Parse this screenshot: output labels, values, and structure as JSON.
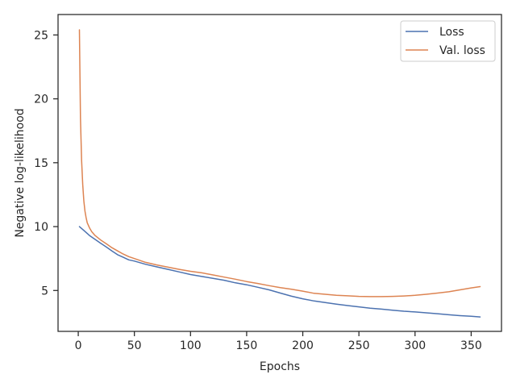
{
  "chart_data": {
    "type": "line",
    "xlabel": "Epochs",
    "ylabel": "Negative log-likelihood",
    "xlim": [
      -18,
      377
    ],
    "ylim": [
      1.8,
      26.6
    ],
    "xticks": [
      0,
      50,
      100,
      150,
      200,
      250,
      300,
      350
    ],
    "yticks": [
      5,
      10,
      15,
      20,
      25
    ],
    "grid": false,
    "legend_position": "top-right",
    "series": [
      {
        "name": "Loss",
        "color": "#4c72b0",
        "x": [
          1,
          5,
          10,
          15,
          20,
          25,
          30,
          35,
          40,
          45,
          50,
          60,
          70,
          80,
          90,
          100,
          110,
          120,
          130,
          140,
          150,
          160,
          170,
          180,
          190,
          200,
          210,
          220,
          230,
          240,
          250,
          260,
          270,
          280,
          290,
          300,
          310,
          320,
          330,
          340,
          350,
          358
        ],
        "y": [
          10.0,
          9.7,
          9.3,
          9.0,
          8.7,
          8.4,
          8.1,
          7.8,
          7.6,
          7.4,
          7.3,
          7.05,
          6.85,
          6.65,
          6.45,
          6.25,
          6.1,
          5.95,
          5.8,
          5.6,
          5.45,
          5.25,
          5.05,
          4.8,
          4.55,
          4.35,
          4.18,
          4.05,
          3.93,
          3.82,
          3.72,
          3.62,
          3.54,
          3.46,
          3.38,
          3.32,
          3.25,
          3.18,
          3.1,
          3.03,
          2.98,
          2.93
        ]
      },
      {
        "name": "Val. loss",
        "color": "#dd8452",
        "x": [
          1,
          2,
          3,
          4,
          5,
          6,
          7,
          8,
          10,
          12,
          15,
          20,
          25,
          30,
          35,
          40,
          45,
          50,
          60,
          70,
          80,
          90,
          100,
          110,
          120,
          130,
          140,
          150,
          160,
          170,
          180,
          190,
          200,
          210,
          220,
          230,
          240,
          250,
          260,
          270,
          280,
          290,
          300,
          310,
          320,
          330,
          340,
          350,
          358
        ],
        "y": [
          25.4,
          18.5,
          15.2,
          13.3,
          12.0,
          11.2,
          10.7,
          10.3,
          9.9,
          9.6,
          9.3,
          8.95,
          8.65,
          8.35,
          8.1,
          7.85,
          7.65,
          7.5,
          7.2,
          7.0,
          6.82,
          6.65,
          6.5,
          6.38,
          6.22,
          6.05,
          5.88,
          5.7,
          5.55,
          5.38,
          5.22,
          5.1,
          4.95,
          4.78,
          4.7,
          4.63,
          4.58,
          4.54,
          4.52,
          4.52,
          4.54,
          4.57,
          4.62,
          4.7,
          4.8,
          4.9,
          5.05,
          5.2,
          5.3
        ]
      }
    ]
  }
}
